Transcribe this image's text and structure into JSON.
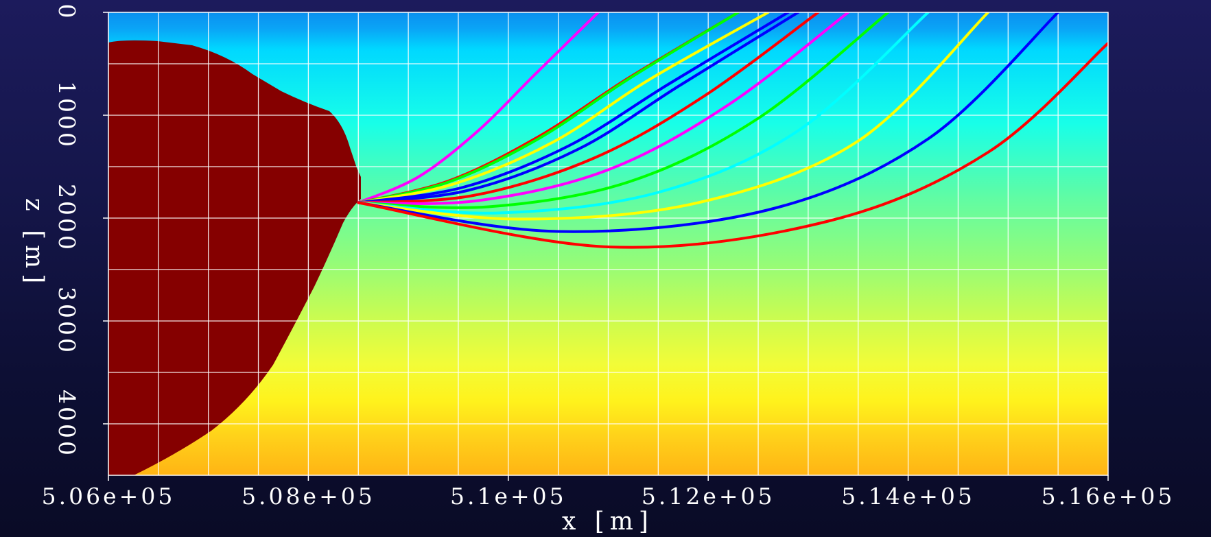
{
  "chart_data": {
    "type": "line",
    "xlabel": "x [m]",
    "ylabel": "z [m]",
    "xlim": [
      506000,
      516000
    ],
    "ylim": [
      4500,
      0
    ],
    "x_ticks": [
      506000,
      508000,
      510000,
      512000,
      514000,
      516000
    ],
    "x_tick_labels": [
      "5.06e+05",
      "5.08e+05",
      "5.1e+05",
      "5.12e+05",
      "5.14e+05",
      "5.16e+05"
    ],
    "y_ticks": [
      0,
      1000,
      2000,
      3000,
      4000
    ],
    "y_tick_labels": [
      "0",
      "1000",
      "2000",
      "3000",
      "4000"
    ],
    "grid": true,
    "grid_x_step": 500,
    "grid_y_step": 500,
    "background": "velocity field colormap (blue at surface to orange at depth) with dark red salt body on the left",
    "source_point": {
      "x": 508500,
      "z": 1850
    },
    "series": [
      {
        "color": "#ff00ff",
        "values": [
          [
            508500,
            1850
          ],
          [
            509100,
            1600
          ],
          [
            509700,
            1150
          ],
          [
            510250,
            620
          ],
          [
            510900,
            0
          ]
        ]
      },
      {
        "color": "#ff0000",
        "values": [
          [
            508500,
            1850
          ],
          [
            509400,
            1640
          ],
          [
            510300,
            1210
          ],
          [
            511200,
            640
          ],
          [
            512300,
            0
          ]
        ]
      },
      {
        "color": "#00ff00",
        "values": [
          [
            508500,
            1850
          ],
          [
            509400,
            1650
          ],
          [
            510300,
            1230
          ],
          [
            511200,
            650
          ],
          [
            512300,
            0
          ]
        ]
      },
      {
        "color": "#ffff00",
        "values": [
          [
            508500,
            1850
          ],
          [
            509450,
            1670
          ],
          [
            510450,
            1260
          ],
          [
            511400,
            660
          ],
          [
            512600,
            0
          ]
        ]
      },
      {
        "color": "#0000ff",
        "values": [
          [
            508500,
            1850
          ],
          [
            509550,
            1700
          ],
          [
            510600,
            1300
          ],
          [
            511600,
            700
          ],
          [
            512800,
            0
          ]
        ]
      },
      {
        "color": "#0000ff",
        "values": [
          [
            508500,
            1850
          ],
          [
            509600,
            1730
          ],
          [
            510700,
            1330
          ],
          [
            511700,
            720
          ],
          [
            512900,
            0
          ]
        ]
      },
      {
        "color": "#ff0000",
        "values": [
          [
            508500,
            1850
          ],
          [
            509650,
            1780
          ],
          [
            510850,
            1420
          ],
          [
            511950,
            820
          ],
          [
            513100,
            0
          ]
        ]
      },
      {
        "color": "#ff00ff",
        "values": [
          [
            508500,
            1850
          ],
          [
            509700,
            1830
          ],
          [
            511000,
            1530
          ],
          [
            512200,
            900
          ],
          [
            513400,
            0
          ]
        ]
      },
      {
        "color": "#00ff00",
        "values": [
          [
            508500,
            1850
          ],
          [
            509800,
            1890
          ],
          [
            511200,
            1650
          ],
          [
            512500,
            1030
          ],
          [
            513800,
            0
          ]
        ]
      },
      {
        "color": "#00ffff",
        "values": [
          [
            508500,
            1850
          ],
          [
            509900,
            1950
          ],
          [
            511500,
            1750
          ],
          [
            512900,
            1150
          ],
          [
            514200,
            0
          ]
        ]
      },
      {
        "color": "#ffff00",
        "values": [
          [
            508500,
            1850
          ],
          [
            510100,
            2010
          ],
          [
            511900,
            1850
          ],
          [
            513500,
            1250
          ],
          [
            514800,
            0
          ]
        ]
      },
      {
        "color": "#0000ff",
        "values": [
          [
            508500,
            1850
          ],
          [
            510500,
            2130
          ],
          [
            512600,
            1920
          ],
          [
            514200,
            1230
          ],
          [
            515500,
            0
          ]
        ]
      },
      {
        "color": "#ff0000",
        "values": [
          [
            508500,
            1850
          ],
          [
            511000,
            2280
          ],
          [
            513200,
            2030
          ],
          [
            514800,
            1360
          ],
          [
            516000,
            300
          ]
        ]
      }
    ]
  }
}
